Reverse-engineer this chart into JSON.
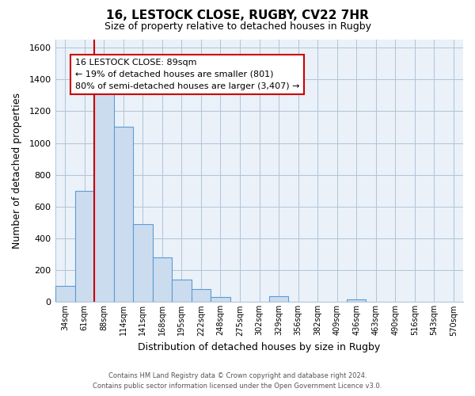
{
  "title": "16, LESTOCK CLOSE, RUGBY, CV22 7HR",
  "subtitle": "Size of property relative to detached houses in Rugby",
  "xlabel": "Distribution of detached houses by size in Rugby",
  "ylabel": "Number of detached properties",
  "bar_labels": [
    "34sqm",
    "61sqm",
    "88sqm",
    "114sqm",
    "141sqm",
    "168sqm",
    "195sqm",
    "222sqm",
    "248sqm",
    "275sqm",
    "302sqm",
    "329sqm",
    "356sqm",
    "382sqm",
    "409sqm",
    "436sqm",
    "463sqm",
    "490sqm",
    "516sqm",
    "543sqm",
    "570sqm"
  ],
  "bar_values": [
    100,
    700,
    1340,
    1100,
    490,
    280,
    140,
    80,
    30,
    0,
    0,
    35,
    0,
    0,
    0,
    15,
    0,
    0,
    0,
    0,
    0
  ],
  "bar_fill_color": "#ccdcef",
  "bar_edge_color": "#5b9bd5",
  "highlight_color": "#cc0000",
  "highlight_bar_index": 2,
  "annotation_text": "16 LESTOCK CLOSE: 89sqm\n← 19% of detached houses are smaller (801)\n80% of semi-detached houses are larger (3,407) →",
  "annotation_box_facecolor": "#ffffff",
  "annotation_box_edgecolor": "#cc0000",
  "plot_bg_color": "#eaf1f8",
  "ylim": [
    0,
    1650
  ],
  "yticks": [
    0,
    200,
    400,
    600,
    800,
    1000,
    1200,
    1400,
    1600
  ],
  "grid_color": "#b0c4d8",
  "footer_line1": "Contains HM Land Registry data © Crown copyright and database right 2024.",
  "footer_line2": "Contains public sector information licensed under the Open Government Licence v3.0.",
  "background_color": "#ffffff"
}
